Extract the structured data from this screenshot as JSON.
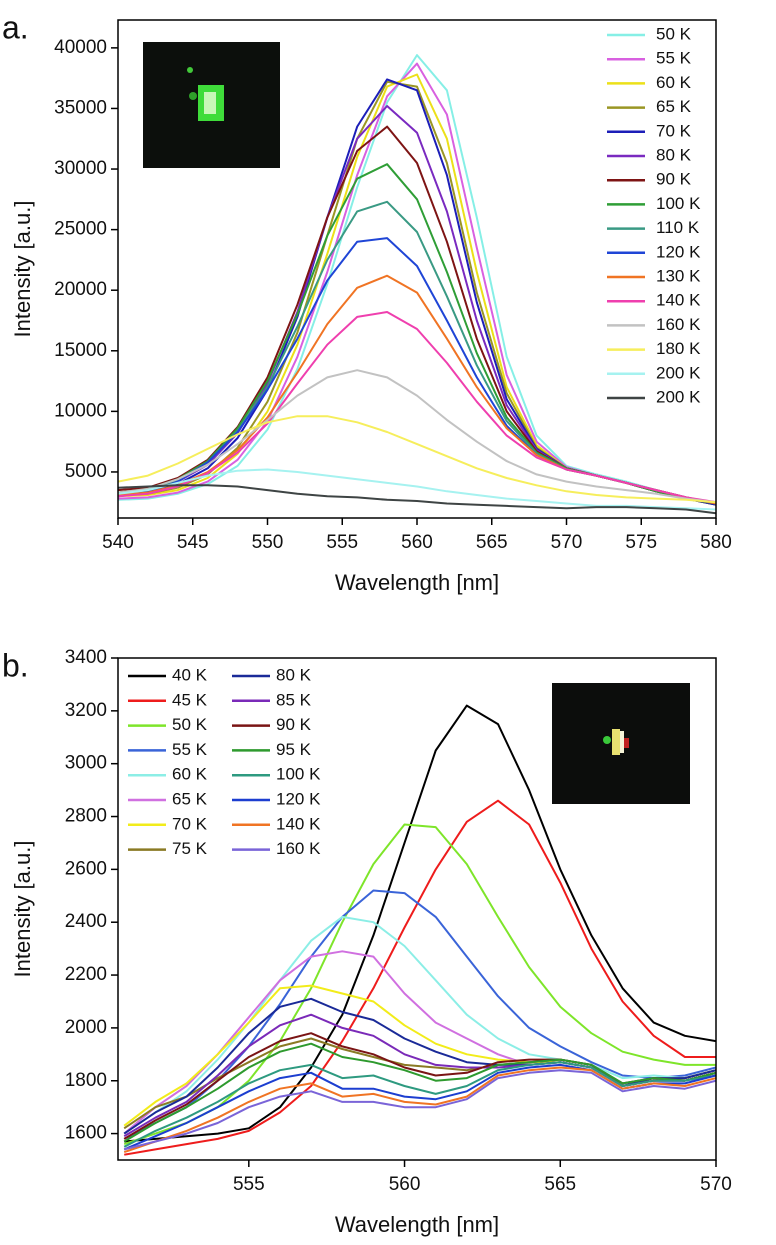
{
  "chart_data": [
    {
      "type": "line",
      "panel_label": "a.",
      "x_label": "Wavelength [nm]",
      "y_label": "Intensity [a.u.]",
      "xlim": [
        540,
        580
      ],
      "xticks": [
        540,
        545,
        550,
        555,
        560,
        565,
        570,
        575,
        580
      ],
      "ylim": [
        1200,
        42300
      ],
      "yticks": [
        5000,
        10000,
        15000,
        20000,
        25000,
        30000,
        35000,
        40000
      ],
      "legend": "upper right",
      "legend_columns": 1,
      "x": [
        540,
        542,
        544,
        546,
        548,
        550,
        552,
        554,
        556,
        558,
        560,
        562,
        564,
        566,
        568,
        570,
        572,
        574,
        576,
        578,
        580
      ],
      "series": [
        {
          "name": "50 K",
          "color": "#86efe6",
          "values": [
            2700,
            2800,
            3200,
            4000,
            5500,
            8500,
            13500,
            20500,
            28500,
            35500,
            39400,
            36500,
            26000,
            14500,
            8000,
            5500,
            4800,
            4200,
            3500,
            2800,
            2300
          ]
        },
        {
          "name": "55 K",
          "color": "#d860e0",
          "values": [
            2800,
            2900,
            3300,
            4200,
            6000,
            9200,
            14500,
            21500,
            29500,
            36000,
            38700,
            34500,
            23500,
            13000,
            7500,
            5400,
            4700,
            4100,
            3400,
            2800,
            2300
          ]
        },
        {
          "name": "60 K",
          "color": "#ece019",
          "values": [
            3000,
            3100,
            3500,
            4500,
            6500,
            10000,
            15500,
            23000,
            31000,
            36800,
            37800,
            32500,
            21500,
            12000,
            7200,
            5300,
            4700,
            4100,
            3400,
            2800,
            2300
          ]
        },
        {
          "name": "65 K",
          "color": "#9a9624",
          "values": [
            3100,
            3200,
            3700,
            4800,
            7000,
            10800,
            16500,
            24500,
            32500,
            37200,
            36800,
            30500,
            19800,
            11500,
            7000,
            5300,
            4700,
            4100,
            3400,
            2800,
            2300
          ]
        },
        {
          "name": "70 K",
          "color": "#1c1eb8",
          "values": [
            3200,
            3400,
            4000,
            5300,
            7800,
            11800,
            17800,
            26000,
            33500,
            37400,
            36500,
            29500,
            19000,
            11000,
            6900,
            5300,
            4700,
            4100,
            3400,
            2800,
            2300
          ]
        },
        {
          "name": "80 K",
          "color": "#7a2ac0",
          "values": [
            3300,
            3500,
            4200,
            5600,
            8200,
            12300,
            18200,
            26000,
            32500,
            35200,
            33000,
            26500,
            17500,
            10500,
            6800,
            5300,
            4700,
            4100,
            3400,
            2800,
            2400
          ]
        },
        {
          "name": "90 K",
          "color": "#7e1414",
          "values": [
            3500,
            3700,
            4500,
            6000,
            8700,
            12800,
            18800,
            26000,
            31500,
            33500,
            30500,
            24000,
            16000,
            10000,
            6700,
            5300,
            4700,
            4100,
            3400,
            2800,
            2400
          ]
        },
        {
          "name": "100 K",
          "color": "#2f9e36",
          "values": [
            3300,
            3600,
            4400,
            5900,
            8600,
            12500,
            18000,
            24500,
            29200,
            30400,
            27500,
            21500,
            14800,
            9500,
            6600,
            5300,
            4700,
            4100,
            3400,
            2800,
            2400
          ]
        },
        {
          "name": "110 K",
          "color": "#3a9a84",
          "values": [
            3200,
            3500,
            4300,
            5800,
            8400,
            12000,
            17000,
            22500,
            26500,
            27300,
            24800,
            19500,
            13800,
            9200,
            6500,
            5200,
            4700,
            4100,
            3500,
            2900,
            2400
          ]
        },
        {
          "name": "120 K",
          "color": "#1f45d6",
          "values": [
            3000,
            3300,
            4200,
            5800,
            8300,
            11800,
            16000,
            20800,
            24000,
            24300,
            22000,
            17500,
            12800,
            8800,
            6400,
            5200,
            4700,
            4100,
            3500,
            2900,
            2400
          ]
        },
        {
          "name": "130 K",
          "color": "#f07424",
          "values": [
            3100,
            3300,
            3900,
            5000,
            6800,
            9500,
            13200,
            17200,
            20200,
            21200,
            19800,
            16000,
            12000,
            8600,
            6400,
            5200,
            4700,
            4100,
            3500,
            2900,
            2400
          ]
        },
        {
          "name": "140 K",
          "color": "#ef3fae",
          "values": [
            3000,
            3200,
            3800,
            4900,
            6600,
            9000,
            12300,
            15500,
            17800,
            18200,
            16800,
            14000,
            10800,
            8000,
            6200,
            5200,
            4700,
            4100,
            3500,
            2900,
            2500
          ]
        },
        {
          "name": "160 K",
          "color": "#c2c2c2",
          "values": [
            3300,
            3600,
            4400,
            5600,
            7300,
            9300,
            11300,
            12800,
            13400,
            12800,
            11300,
            9300,
            7500,
            5900,
            4800,
            4200,
            3800,
            3500,
            3200,
            2800,
            2500
          ]
        },
        {
          "name": "180 K",
          "color": "#f6ee5c",
          "values": [
            4200,
            4700,
            5700,
            6900,
            8100,
            9100,
            9600,
            9600,
            9100,
            8300,
            7300,
            6300,
            5300,
            4500,
            3900,
            3400,
            3100,
            2900,
            2800,
            2700,
            2500
          ]
        },
        {
          "name": "200 K",
          "color": "#a6f2f0",
          "values": [
            3200,
            3500,
            4100,
            4700,
            5100,
            5200,
            5000,
            4700,
            4400,
            4100,
            3800,
            3400,
            3100,
            2800,
            2600,
            2400,
            2200,
            2200,
            2100,
            2000,
            1900
          ]
        },
        {
          "name": "200 K",
          "color": "#3e4444",
          "values": [
            3700,
            3800,
            3900,
            3900,
            3800,
            3500,
            3200,
            3000,
            2900,
            2700,
            2600,
            2400,
            2300,
            2200,
            2100,
            2000,
            2100,
            2100,
            2000,
            1900,
            1600
          ]
        }
      ]
    },
    {
      "type": "line",
      "panel_label": "b.",
      "x_label": "Wavelength [nm]",
      "y_label": "Intensity [a.u.]",
      "xlim": [
        550.8,
        570
      ],
      "xticks": [
        555,
        560,
        565,
        570
      ],
      "ylim": [
        1500,
        3400
      ],
      "yticks": [
        1600,
        1800,
        2000,
        2200,
        2400,
        2600,
        2800,
        3000,
        3200,
        3400
      ],
      "legend": "upper left",
      "legend_columns": 2,
      "x": [
        551,
        552,
        553,
        554,
        555,
        556,
        557,
        558,
        559,
        560,
        561,
        562,
        563,
        564,
        565,
        566,
        567,
        568,
        569,
        570
      ],
      "series": [
        {
          "name": "40 K",
          "color": "#000000",
          "values": [
            1570,
            1580,
            1590,
            1600,
            1620,
            1700,
            1850,
            2050,
            2350,
            2700,
            3050,
            3220,
            3150,
            2900,
            2600,
            2350,
            2150,
            2020,
            1970,
            1950
          ]
        },
        {
          "name": "45 K",
          "color": "#ee1c1c",
          "values": [
            1520,
            1540,
            1560,
            1580,
            1610,
            1680,
            1780,
            1950,
            2150,
            2380,
            2600,
            2780,
            2860,
            2770,
            2550,
            2300,
            2100,
            1970,
            1890,
            1890
          ]
        },
        {
          "name": "50 K",
          "color": "#7ee52a",
          "values": [
            1560,
            1600,
            1640,
            1700,
            1800,
            1950,
            2150,
            2400,
            2620,
            2770,
            2760,
            2620,
            2420,
            2230,
            2080,
            1980,
            1910,
            1880,
            1860,
            1860
          ]
        },
        {
          "name": "55 K",
          "color": "#3a64d8",
          "values": [
            1580,
            1640,
            1700,
            1800,
            1930,
            2090,
            2270,
            2420,
            2520,
            2510,
            2420,
            2270,
            2120,
            2000,
            1930,
            1870,
            1820,
            1810,
            1820,
            1850
          ]
        },
        {
          "name": "60 K",
          "color": "#8ceee6",
          "values": [
            1600,
            1680,
            1760,
            1880,
            2020,
            2180,
            2330,
            2420,
            2400,
            2310,
            2180,
            2050,
            1960,
            1900,
            1880,
            1860,
            1810,
            1820,
            1810,
            1840
          ]
        },
        {
          "name": "65 K",
          "color": "#d070e0",
          "values": [
            1600,
            1700,
            1780,
            1900,
            2040,
            2180,
            2270,
            2290,
            2270,
            2130,
            2020,
            1960,
            1900,
            1860,
            1870,
            1850,
            1780,
            1800,
            1800,
            1830
          ]
        },
        {
          "name": "70 K",
          "color": "#f2ec1a",
          "values": [
            1630,
            1720,
            1790,
            1900,
            2020,
            2150,
            2160,
            2130,
            2100,
            2010,
            1940,
            1900,
            1880,
            1870,
            1870,
            1850,
            1780,
            1810,
            1810,
            1840
          ]
        },
        {
          "name": "75 K",
          "color": "#8a7a24",
          "values": [
            1620,
            1700,
            1740,
            1810,
            1870,
            1930,
            1960,
            1920,
            1890,
            1860,
            1850,
            1840,
            1860,
            1870,
            1880,
            1860,
            1780,
            1800,
            1810,
            1840
          ]
        },
        {
          "name": "80 K",
          "color": "#1a2a98",
          "values": [
            1600,
            1680,
            1740,
            1850,
            1980,
            2080,
            2110,
            2060,
            2030,
            1960,
            1910,
            1870,
            1860,
            1860,
            1870,
            1850,
            1780,
            1810,
            1810,
            1840
          ]
        },
        {
          "name": "85 K",
          "color": "#7a2ab8",
          "values": [
            1590,
            1660,
            1720,
            1820,
            1930,
            2010,
            2050,
            2000,
            1970,
            1900,
            1860,
            1850,
            1850,
            1860,
            1870,
            1850,
            1780,
            1800,
            1800,
            1830
          ]
        },
        {
          "name": "90 K",
          "color": "#7a1414",
          "values": [
            1580,
            1650,
            1710,
            1800,
            1890,
            1950,
            1980,
            1930,
            1900,
            1850,
            1820,
            1830,
            1870,
            1880,
            1880,
            1860,
            1790,
            1810,
            1800,
            1830
          ]
        },
        {
          "name": "95 K",
          "color": "#2e9a2e",
          "values": [
            1570,
            1640,
            1700,
            1770,
            1850,
            1910,
            1940,
            1890,
            1870,
            1840,
            1800,
            1810,
            1860,
            1870,
            1880,
            1860,
            1790,
            1810,
            1800,
            1830
          ]
        },
        {
          "name": "100 K",
          "color": "#2e9a80",
          "values": [
            1550,
            1610,
            1660,
            1720,
            1790,
            1840,
            1860,
            1810,
            1820,
            1780,
            1750,
            1780,
            1840,
            1860,
            1870,
            1850,
            1780,
            1800,
            1800,
            1820
          ]
        },
        {
          "name": "120 K",
          "color": "#1c3ed0",
          "values": [
            1540,
            1590,
            1640,
            1700,
            1760,
            1810,
            1830,
            1770,
            1770,
            1740,
            1730,
            1760,
            1830,
            1850,
            1860,
            1840,
            1770,
            1790,
            1790,
            1820
          ]
        },
        {
          "name": "140 K",
          "color": "#f07424",
          "values": [
            1530,
            1570,
            1610,
            1660,
            1720,
            1770,
            1790,
            1740,
            1750,
            1720,
            1710,
            1740,
            1820,
            1840,
            1850,
            1840,
            1770,
            1790,
            1780,
            1810
          ]
        },
        {
          "name": "160 K",
          "color": "#7a64d8",
          "values": [
            1540,
            1570,
            1600,
            1640,
            1700,
            1740,
            1760,
            1720,
            1720,
            1700,
            1700,
            1730,
            1810,
            1830,
            1840,
            1830,
            1760,
            1780,
            1770,
            1800
          ]
        }
      ]
    }
  ]
}
